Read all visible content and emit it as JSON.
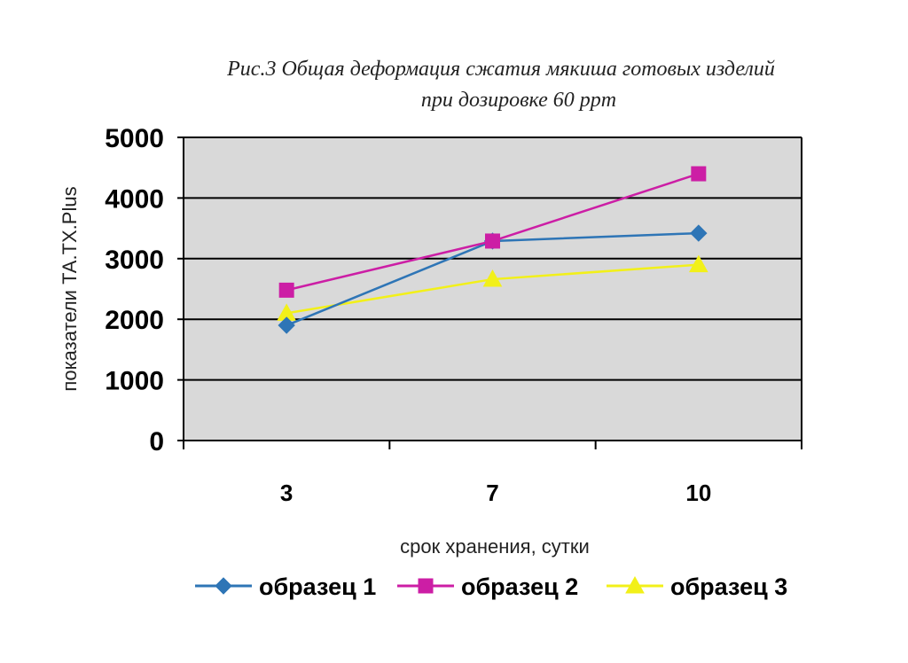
{
  "chart_data": {
    "type": "line",
    "title_line1": "Рис.3 Общая деформация сжатия мякиша готовых изделий",
    "title_line2": "при дозировке 60 ppm",
    "xlabel": "срок хранения, сутки",
    "ylabel": "показатели ТА.ТХ.Plus",
    "categories": [
      "3",
      "7",
      "10"
    ],
    "ylim": [
      0,
      5000
    ],
    "yticks": [
      "0",
      "1000",
      "2000",
      "3000",
      "4000",
      "5000"
    ],
    "grid": true,
    "legend_position": "bottom",
    "plot_background": "#d9d9d9",
    "series": [
      {
        "name": "образец 1",
        "values": [
          1900,
          3290,
          3420
        ],
        "color": "#2e75b6",
        "marker": "diamond"
      },
      {
        "name": "образец 2",
        "values": [
          2480,
          3290,
          4400
        ],
        "color": "#cc1ea5",
        "marker": "square"
      },
      {
        "name": "образец 3",
        "values": [
          2100,
          2660,
          2900
        ],
        "color": "#f2f019",
        "marker": "triangle"
      }
    ]
  }
}
